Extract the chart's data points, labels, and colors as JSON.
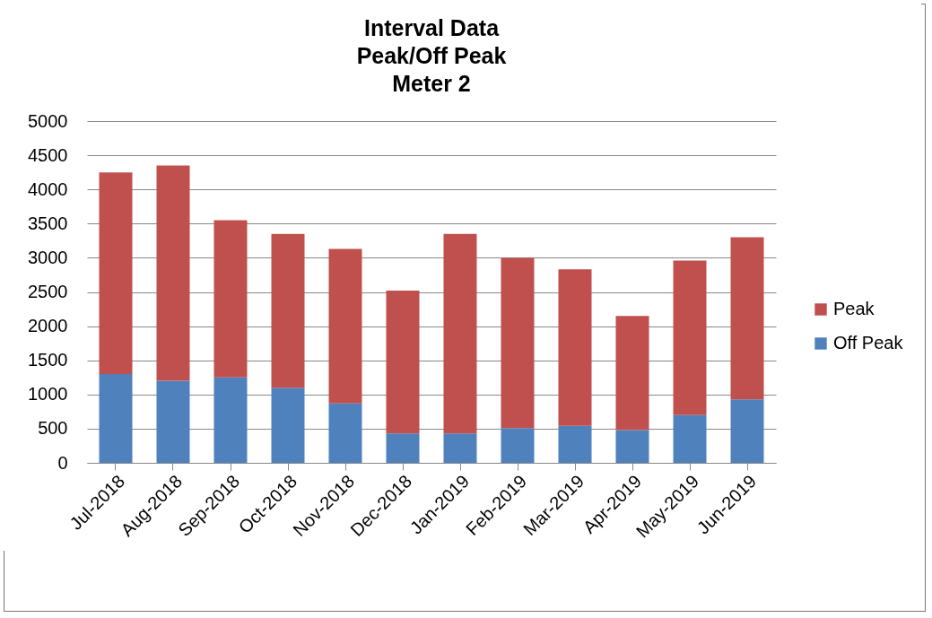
{
  "chart_data": {
    "type": "bar",
    "title": "Interval Data\nPeak/Off Peak\nMeter 2",
    "categories": [
      "Jul-2018",
      "Aug-2018",
      "Sep-2018",
      "Oct-2018",
      "Nov-2018",
      "Dec-2018",
      "Jan-2019",
      "Feb-2019",
      "Mar-2019",
      "Apr-2019",
      "May-2019",
      "Jun-2019"
    ],
    "stacked": true,
    "series": [
      {
        "name": "Off Peak",
        "color": "#4f81bd",
        "values": [
          1300,
          1200,
          1250,
          1100,
          870,
          430,
          430,
          510,
          540,
          480,
          700,
          930
        ]
      },
      {
        "name": "Peak",
        "color": "#c0504d",
        "values": [
          2950,
          3150,
          2300,
          2250,
          2260,
          2090,
          2920,
          2490,
          2290,
          1670,
          2260,
          2370
        ]
      }
    ],
    "ylim": [
      0,
      5000
    ],
    "yticks": [
      0,
      500,
      1000,
      1500,
      2000,
      2500,
      3000,
      3500,
      4000,
      4500,
      5000
    ],
    "grid": "y",
    "legend": "right"
  }
}
